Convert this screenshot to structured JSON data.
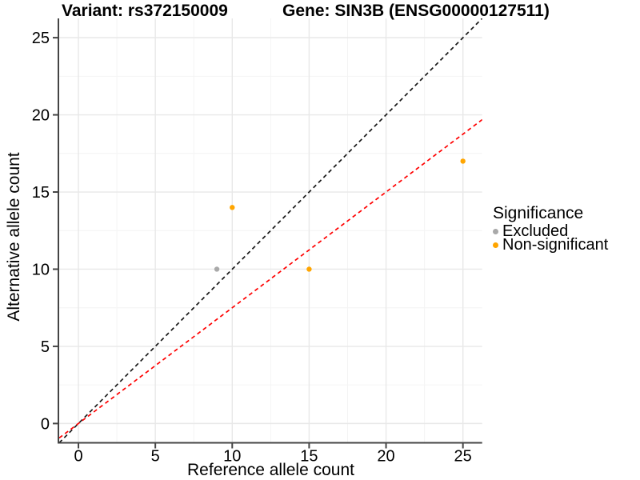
{
  "chart_data": {
    "type": "scatter",
    "titles": {
      "left": "Variant: rs372150009",
      "right": "Gene: SIN3B (ENSG00000127511)"
    },
    "xlabel": "Reference allele count",
    "ylabel": "Alternative allele count",
    "xlim": [
      -1.25,
      26.25
    ],
    "ylim": [
      -1.25,
      26.25
    ],
    "xticks": [
      0,
      5,
      10,
      15,
      20,
      25
    ],
    "yticks": [
      0,
      5,
      10,
      15,
      20,
      25
    ],
    "x_minor_ticks": [
      2.5,
      7.5,
      12.5,
      17.5,
      22.5
    ],
    "y_minor_ticks": [
      2.5,
      7.5,
      12.5,
      17.5,
      22.5
    ],
    "grid": true,
    "legend_position": "right",
    "series": [
      {
        "name": "Excluded",
        "color": "#A9A9A9",
        "points": [
          {
            "x": 9,
            "y": 10
          }
        ]
      },
      {
        "name": "Non-significant",
        "color": "#FFA500",
        "points": [
          {
            "x": 10,
            "y": 14
          },
          {
            "x": 15,
            "y": 10
          },
          {
            "x": 25,
            "y": 17
          }
        ]
      }
    ],
    "lines": [
      {
        "name": "identity-line",
        "slope": 1,
        "intercept": 0,
        "color": "#1A1A1A",
        "style": "dashed"
      },
      {
        "name": "ratio-line",
        "slope": 0.75,
        "intercept": 0,
        "color": "#FF0000",
        "style": "dashed"
      }
    ],
    "legend": {
      "title": "Significance",
      "items": [
        {
          "label": "Excluded",
          "color": "#A9A9A9"
        },
        {
          "label": "Non-significant",
          "color": "#FFA500"
        }
      ]
    },
    "colors": {
      "major_grid": "#E8E8E8",
      "minor_grid": "#F4F4F4",
      "axis_line": "#454545",
      "tick_text": "#000000"
    }
  }
}
